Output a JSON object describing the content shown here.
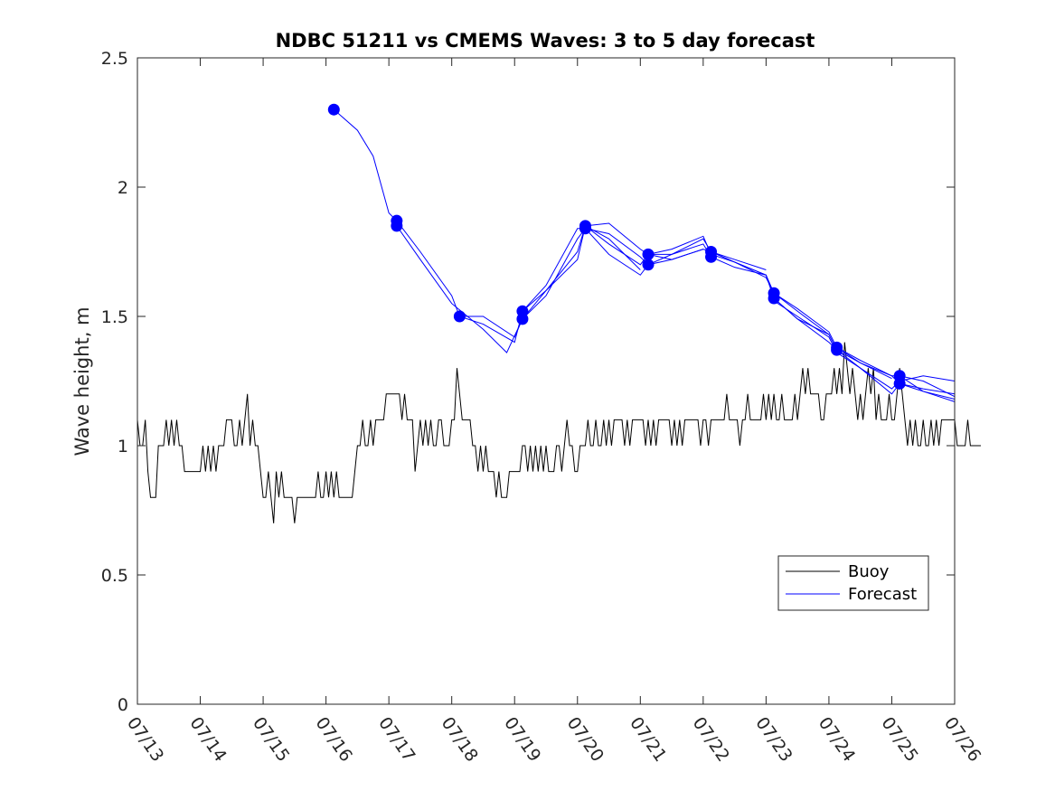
{
  "chart_data": {
    "type": "line",
    "title": "NDBC 51211 vs CMEMS Waves: 3 to 5 day forecast",
    "xlabel": "",
    "ylabel": "Wave height, m",
    "xlim": [
      "07/13",
      "07/26"
    ],
    "ylim": [
      0,
      2.5
    ],
    "x_tick_labels": [
      "07/13",
      "07/14",
      "07/15",
      "07/16",
      "07/17",
      "07/18",
      "07/19",
      "07/20",
      "07/21",
      "07/22",
      "07/23",
      "07/24",
      "07/25",
      "07/26"
    ],
    "y_tick_labels": [
      "0",
      "0.5",
      "1",
      "1.5",
      "2",
      "2.5"
    ],
    "y_ticks": [
      0,
      0.5,
      1,
      1.5,
      2,
      2.5
    ],
    "grid": false,
    "legend": {
      "position": "bottom-right",
      "entries": [
        "Buoy",
        "Forecast"
      ]
    },
    "colors": {
      "buoy": "#000000",
      "forecast": "#0000ff"
    },
    "series": [
      {
        "name": "Buoy",
        "x_date_start": "07/13 00:00",
        "x_step_hours": 1,
        "values": [
          1.1,
          1.0,
          1.0,
          1.1,
          0.9,
          0.8,
          0.8,
          0.8,
          1.0,
          1.0,
          1.0,
          1.1,
          1.0,
          1.1,
          1.0,
          1.1,
          1.0,
          1.0,
          0.9,
          0.9,
          0.9,
          0.9,
          0.9,
          0.9,
          0.9,
          1.0,
          0.9,
          1.0,
          0.9,
          1.0,
          0.9,
          1.0,
          1.0,
          1.0,
          1.1,
          1.1,
          1.1,
          1.0,
          1.0,
          1.1,
          1.0,
          1.1,
          1.2,
          1.0,
          1.1,
          1.0,
          1.0,
          0.9,
          0.8,
          0.8,
          0.9,
          0.8,
          0.7,
          0.9,
          0.8,
          0.9,
          0.8,
          0.8,
          0.8,
          0.8,
          0.7,
          0.8,
          0.8,
          0.8,
          0.8,
          0.8,
          0.8,
          0.8,
          0.8,
          0.9,
          0.8,
          0.8,
          0.9,
          0.8,
          0.9,
          0.8,
          0.9,
          0.8,
          0.8,
          0.8,
          0.8,
          0.8,
          0.8,
          0.9,
          1.0,
          1.0,
          1.1,
          1.0,
          1.0,
          1.1,
          1.0,
          1.1,
          1.1,
          1.1,
          1.1,
          1.2,
          1.2,
          1.2,
          1.2,
          1.2,
          1.2,
          1.1,
          1.2,
          1.1,
          1.1,
          1.1,
          0.9,
          1.0,
          1.1,
          1.0,
          1.1,
          1.0,
          1.1,
          1.0,
          1.0,
          1.1,
          1.1,
          1.0,
          1.0,
          1.0,
          1.1,
          1.1,
          1.3,
          1.2,
          1.1,
          1.1,
          1.1,
          1.1,
          1.0,
          1.0,
          0.9,
          1.0,
          0.9,
          1.0,
          0.9,
          0.9,
          0.9,
          0.8,
          0.9,
          0.8,
          0.8,
          0.8,
          0.9,
          0.9,
          0.9,
          0.9,
          0.9,
          1.0,
          1.0,
          0.9,
          1.0,
          0.9,
          1.0,
          0.9,
          1.0,
          0.9,
          1.0,
          0.9,
          0.9,
          0.9,
          1.0,
          1.0,
          0.9,
          1.0,
          1.1,
          1.0,
          1.0,
          0.9,
          0.9,
          1.0,
          1.0,
          1.0,
          1.1,
          1.0,
          1.0,
          1.1,
          1.0,
          1.0,
          1.1,
          1.0,
          1.1,
          1.0,
          1.1,
          1.1,
          1.1,
          1.1,
          1.0,
          1.1,
          1.0,
          1.1,
          1.1,
          1.1,
          1.1,
          1.1,
          1.0,
          1.1,
          1.0,
          1.1,
          1.0,
          1.1,
          1.1,
          1.1,
          1.1,
          1.1,
          1.0,
          1.1,
          1.0,
          1.1,
          1.0,
          1.1,
          1.1,
          1.1,
          1.1,
          1.1,
          1.1,
          1.0,
          1.1,
          1.1,
          1.0,
          1.1,
          1.1,
          1.1,
          1.1,
          1.1,
          1.1,
          1.2,
          1.1,
          1.1,
          1.1,
          1.1,
          1.0,
          1.1,
          1.1,
          1.2,
          1.1,
          1.1,
          1.1,
          1.1,
          1.1,
          1.2,
          1.1,
          1.2,
          1.1,
          1.2,
          1.1,
          1.1,
          1.2,
          1.1,
          1.1,
          1.1,
          1.1,
          1.2,
          1.1,
          1.2,
          1.3,
          1.2,
          1.3,
          1.2,
          1.2,
          1.2,
          1.2,
          1.1,
          1.1,
          1.2,
          1.2,
          1.2,
          1.3,
          1.2,
          1.3,
          1.2,
          1.4,
          1.3,
          1.2,
          1.3,
          1.2,
          1.1,
          1.2,
          1.1,
          1.2,
          1.3,
          1.2,
          1.3,
          1.1,
          1.2,
          1.1,
          1.1,
          1.1,
          1.2,
          1.1,
          1.1,
          1.2,
          1.3,
          1.2,
          1.1,
          1.0,
          1.1,
          1.0,
          1.1,
          1.0,
          1.0,
          1.1,
          1.0,
          1.0,
          1.1,
          1.0,
          1.1,
          1.0,
          1.1,
          1.1,
          1.1,
          1.1,
          1.1,
          1.1,
          1.0,
          1.0,
          1.0,
          1.0,
          1.1,
          1.0,
          1.0,
          1.0,
          1.0,
          1.0
        ]
      },
      {
        "name": "Forecast",
        "runs": [
          {
            "x": [
              "07/16 03:00",
              "07/16 12:00",
              "07/16 18:00",
              "07/17 00:00",
              "07/17 03:00",
              "07/17 12:00",
              "07/18 00:00",
              "07/18 03:00",
              "07/18 12:00",
              "07/19 00:00",
              "07/19 03:00",
              "07/19 12:00",
              "07/20 00:00",
              "07/20 03:00",
              "07/20 12:00",
              "07/21 00:00"
            ],
            "y": [
              2.3,
              2.22,
              2.12,
              1.9,
              1.87,
              1.75,
              1.58,
              1.5,
              1.47,
              1.4,
              1.52,
              1.6,
              1.72,
              1.85,
              1.8,
              1.68
            ]
          },
          {
            "x": [
              "07/17 03:00",
              "07/17 12:00",
              "07/18 00:00",
              "07/18 12:00",
              "07/18 21:00",
              "07/19 03:00",
              "07/19 12:00",
              "07/20 00:00",
              "07/20 03:00",
              "07/20 12:00",
              "07/21 00:00",
              "07/21 03:00",
              "07/21 12:00",
              "07/22 00:00"
            ],
            "y": [
              1.85,
              1.72,
              1.55,
              1.45,
              1.36,
              1.49,
              1.58,
              1.8,
              1.84,
              1.82,
              1.73,
              1.7,
              1.72,
              1.76
            ]
          },
          {
            "x": [
              "07/18 03:00",
              "07/18 12:00",
              "07/19 00:00",
              "07/19 03:00",
              "07/19 12:00",
              "07/20 00:00",
              "07/20 03:00",
              "07/20 12:00",
              "07/21 00:00",
              "07/21 03:00",
              "07/21 12:00",
              "07/22 00:00",
              "07/22 03:00",
              "07/22 12:00",
              "07/23 00:00"
            ],
            "y": [
              1.5,
              1.5,
              1.42,
              1.49,
              1.6,
              1.75,
              1.85,
              1.78,
              1.7,
              1.74,
              1.72,
              1.76,
              1.75,
              1.72,
              1.68
            ]
          },
          {
            "x": [
              "07/19 03:00",
              "07/19 12:00",
              "07/20 00:00",
              "07/20 03:00",
              "07/20 12:00",
              "07/21 00:00",
              "07/21 03:00",
              "07/21 12:00",
              "07/22 00:00",
              "07/22 03:00",
              "07/22 12:00",
              "07/23 00:00",
              "07/23 03:00",
              "07/23 12:00",
              "07/24 00:00"
            ],
            "y": [
              1.52,
              1.62,
              1.84,
              1.84,
              1.74,
              1.66,
              1.7,
              1.74,
              1.78,
              1.73,
              1.69,
              1.66,
              1.59,
              1.52,
              1.43
            ]
          },
          {
            "x": [
              "07/20 03:00",
              "07/20 12:00",
              "07/21 00:00",
              "07/21 03:00",
              "07/21 12:00",
              "07/22 00:00",
              "07/22 03:00",
              "07/22 12:00",
              "07/23 00:00",
              "07/23 03:00",
              "07/23 12:00",
              "07/24 00:00",
              "07/24 03:00",
              "07/24 12:00",
              "07/25 00:00"
            ],
            "y": [
              1.85,
              1.86,
              1.76,
              1.74,
              1.74,
              1.8,
              1.75,
              1.71,
              1.66,
              1.57,
              1.49,
              1.43,
              1.37,
              1.32,
              1.26
            ]
          },
          {
            "x": [
              "07/21 03:00",
              "07/21 12:00",
              "07/22 00:00",
              "07/22 03:00",
              "07/22 12:00",
              "07/23 00:00",
              "07/23 03:00",
              "07/23 12:00",
              "07/24 00:00",
              "07/24 03:00",
              "07/24 12:00",
              "07/25 00:00",
              "07/25 03:00",
              "07/25 12:00",
              "07/26 00:00"
            ],
            "y": [
              1.74,
              1.76,
              1.81,
              1.74,
              1.71,
              1.65,
              1.59,
              1.53,
              1.44,
              1.38,
              1.33,
              1.27,
              1.27,
              1.25,
              1.19
            ]
          },
          {
            "x": [
              "07/22 03:00",
              "07/22 12:00",
              "07/23 00:00",
              "07/23 03:00",
              "07/23 12:00",
              "07/24 00:00",
              "07/24 03:00",
              "07/24 12:00",
              "07/25 00:00",
              "07/25 03:00",
              "07/25 12:00",
              "07/26 00:00"
            ],
            "y": [
              1.75,
              1.71,
              1.66,
              1.57,
              1.49,
              1.4,
              1.37,
              1.3,
              1.22,
              1.25,
              1.27,
              1.25
            ]
          },
          {
            "x": [
              "07/23 03:00",
              "07/23 12:00",
              "07/24 00:00",
              "07/24 03:00",
              "07/24 12:00",
              "07/25 00:00",
              "07/25 03:00",
              "07/25 12:00",
              "07/26 00:00"
            ],
            "y": [
              1.56,
              1.5,
              1.42,
              1.36,
              1.3,
              1.2,
              1.24,
              1.21,
              1.17
            ]
          },
          {
            "x": [
              "07/24 03:00",
              "07/24 12:00",
              "07/25 00:00",
              "07/25 03:00",
              "07/25 12:00",
              "07/26 00:00"
            ],
            "y": [
              1.38,
              1.32,
              1.27,
              1.24,
              1.22,
              1.2
            ]
          },
          {
            "x": [
              "07/25 03:00",
              "07/25 12:00",
              "07/26 00:00"
            ],
            "y": [
              1.27,
              1.21,
              1.18
            ]
          }
        ],
        "markers": {
          "x": [
            "07/16 03:00",
            "07/17 03:00",
            "07/17 03:00",
            "07/18 03:00",
            "07/19 03:00",
            "07/19 03:00",
            "07/20 03:00",
            "07/20 03:00",
            "07/21 03:00",
            "07/21 03:00",
            "07/22 03:00",
            "07/22 03:00",
            "07/23 03:00",
            "07/23 03:00",
            "07/24 03:00",
            "07/24 03:00",
            "07/25 03:00",
            "07/25 03:00"
          ],
          "y": [
            2.3,
            1.87,
            1.85,
            1.5,
            1.52,
            1.49,
            1.85,
            1.84,
            1.74,
            1.7,
            1.75,
            1.73,
            1.59,
            1.57,
            1.38,
            1.37,
            1.27,
            1.24
          ]
        }
      }
    ]
  }
}
